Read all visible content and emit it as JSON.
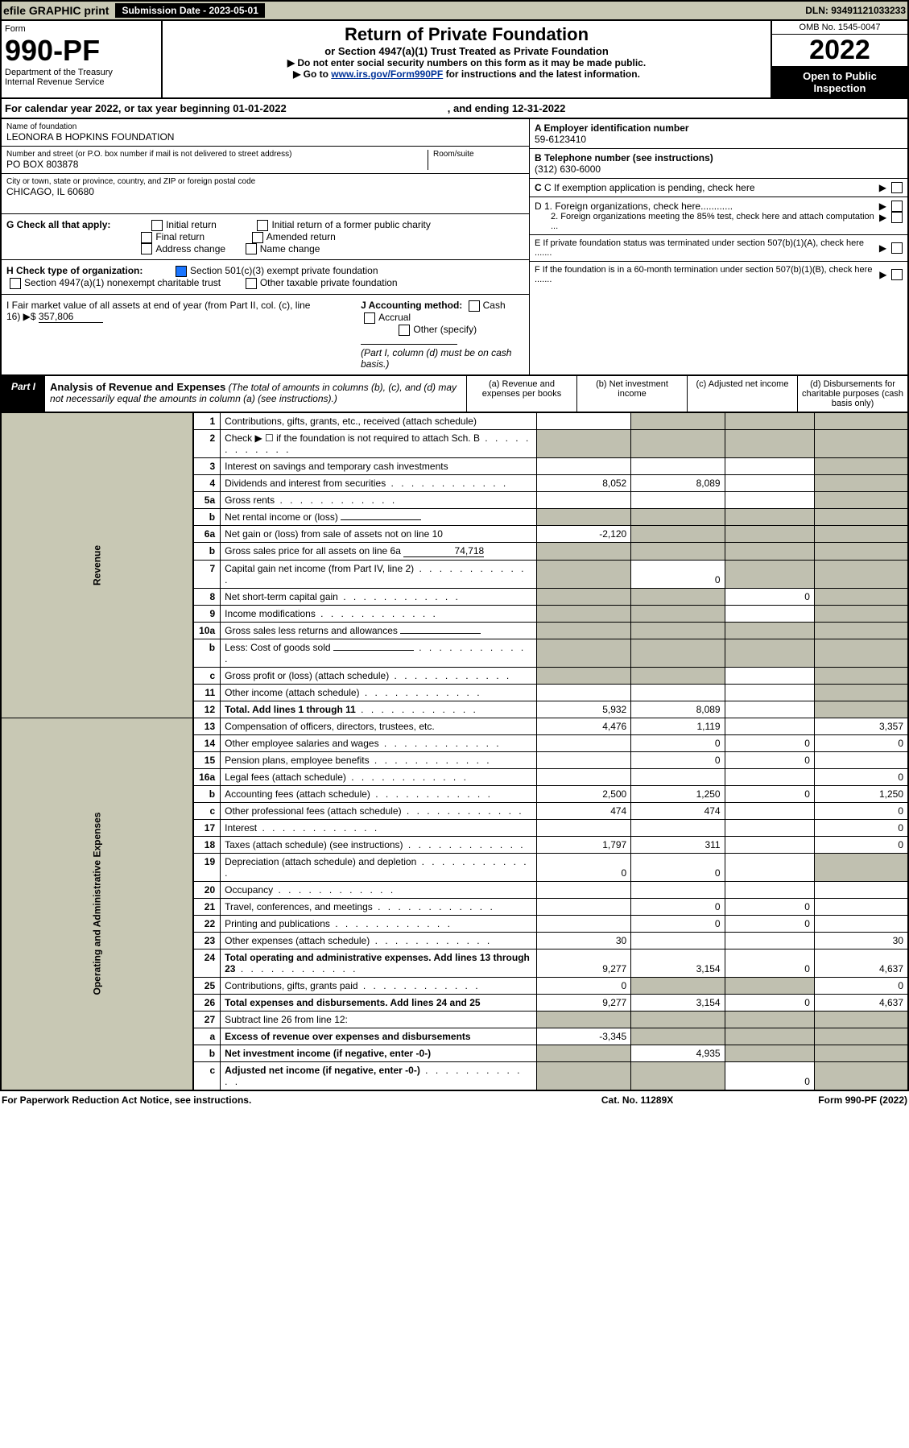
{
  "top_bar": {
    "efile": "efile GRAPHIC print",
    "submission": "Submission Date - 2023-05-01",
    "dln": "DLN: 93491121033233"
  },
  "header": {
    "form": "Form",
    "number": "990-PF",
    "dept": "Department of the Treasury",
    "irs": "Internal Revenue Service",
    "title": "Return of Private Foundation",
    "subtitle": "or Section 4947(a)(1) Trust Treated as Private Foundation",
    "inst1": "▶ Do not enter social security numbers on this form as it may be made public.",
    "inst2_pre": "▶ Go to ",
    "inst2_link": "www.irs.gov/Form990PF",
    "inst2_post": " for instructions and the latest information.",
    "omb": "OMB No. 1545-0047",
    "year": "2022",
    "open": "Open to Public Inspection"
  },
  "calendar": {
    "text": "For calendar year 2022, or tax year beginning 01-01-2022",
    "ending": ", and ending 12-31-2022"
  },
  "foundation": {
    "name_lbl": "Name of foundation",
    "name": "LEONORA B HOPKINS FOUNDATION",
    "addr_lbl": "Number and street (or P.O. box number if mail is not delivered to street address)",
    "addr": "PO BOX 803878",
    "room_lbl": "Room/suite",
    "city_lbl": "City or town, state or province, country, and ZIP or foreign postal code",
    "city": "CHICAGO, IL  60680"
  },
  "right_info": {
    "a_lbl": "A Employer identification number",
    "a_val": "59-6123410",
    "b_lbl": "B Telephone number (see instructions)",
    "b_val": "(312) 630-6000",
    "c_lbl": "C If exemption application is pending, check here",
    "d1": "D 1. Foreign organizations, check here............",
    "d2": "2. Foreign organizations meeting the 85% test, check here and attach computation ...",
    "e_lbl": "E  If private foundation status was terminated under section 507(b)(1)(A), check here .......",
    "f_lbl": "F  If the foundation is in a 60-month termination under section 507(b)(1)(B), check here ......."
  },
  "checks": {
    "g_lbl": "G Check all that apply:",
    "initial": "Initial return",
    "final": "Final return",
    "addr_change": "Address change",
    "initial_former": "Initial return of a former public charity",
    "amended": "Amended return",
    "name_change": "Name change",
    "h_lbl": "H Check type of organization:",
    "h1": "Section 501(c)(3) exempt private foundation",
    "h2": "Section 4947(a)(1) nonexempt charitable trust",
    "h3": "Other taxable private foundation",
    "i_lbl": "I Fair market value of all assets at end of year (from Part II, col. (c), line 16) ▶$ ",
    "i_val": "357,806",
    "j_lbl": "J Accounting method:",
    "j_cash": "Cash",
    "j_accrual": "Accrual",
    "j_other": "Other (specify)",
    "j_note": "(Part I, column (d) must be on cash basis.)"
  },
  "part1": {
    "label": "Part I",
    "title": "Analysis of Revenue and Expenses",
    "note": "(The total of amounts in columns (b), (c), and (d) may not necessarily equal the amounts in column (a) (see instructions).)",
    "col_a": "(a)  Revenue and expenses per books",
    "col_b": "(b)  Net investment income",
    "col_c": "(c)  Adjusted net income",
    "col_d": "(d)  Disbursements for charitable purposes (cash basis only)"
  },
  "sections": {
    "revenue": "Revenue",
    "expenses": "Operating and Administrative Expenses"
  },
  "rows": [
    {
      "n": "1",
      "d": "Contributions, gifts, grants, etc., received (attach schedule)",
      "a": "",
      "b": "g",
      "c": "g",
      "dd": "g"
    },
    {
      "n": "2",
      "d": "Check ▶ ☐ if the foundation is not required to attach Sch. B",
      "a": "g",
      "b": "g",
      "c": "g",
      "dd": "g",
      "dots": true
    },
    {
      "n": "3",
      "d": "Interest on savings and temporary cash investments",
      "a": "",
      "b": "",
      "c": "",
      "dd": "g"
    },
    {
      "n": "4",
      "d": "Dividends and interest from securities",
      "a": "8,052",
      "b": "8,089",
      "c": "",
      "dd": "g",
      "dots": true
    },
    {
      "n": "5a",
      "d": "Gross rents",
      "a": "",
      "b": "",
      "c": "",
      "dd": "g",
      "dots": true
    },
    {
      "n": "b",
      "d": "Net rental income or (loss)",
      "a": "g",
      "b": "g",
      "c": "g",
      "dd": "g",
      "inline": true
    },
    {
      "n": "6a",
      "d": "Net gain or (loss) from sale of assets not on line 10",
      "a": "-2,120",
      "b": "g",
      "c": "g",
      "dd": "g"
    },
    {
      "n": "b",
      "d": "Gross sales price for all assets on line 6a",
      "a": "g",
      "b": "g",
      "c": "g",
      "dd": "g",
      "val": "74,718",
      "inline": true
    },
    {
      "n": "7",
      "d": "Capital gain net income (from Part IV, line 2)",
      "a": "g",
      "b": "0",
      "c": "g",
      "dd": "g",
      "dots": true
    },
    {
      "n": "8",
      "d": "Net short-term capital gain",
      "a": "g",
      "b": "g",
      "c": "0",
      "dd": "g",
      "dots": true
    },
    {
      "n": "9",
      "d": "Income modifications",
      "a": "g",
      "b": "g",
      "c": "",
      "dd": "g",
      "dots": true
    },
    {
      "n": "10a",
      "d": "Gross sales less returns and allowances",
      "a": "g",
      "b": "g",
      "c": "g",
      "dd": "g",
      "inline": true
    },
    {
      "n": "b",
      "d": "Less: Cost of goods sold",
      "a": "g",
      "b": "g",
      "c": "g",
      "dd": "g",
      "inline": true,
      "dots": true
    },
    {
      "n": "c",
      "d": "Gross profit or (loss) (attach schedule)",
      "a": "g",
      "b": "g",
      "c": "",
      "dd": "g",
      "dots": true
    },
    {
      "n": "11",
      "d": "Other income (attach schedule)",
      "a": "",
      "b": "",
      "c": "",
      "dd": "g",
      "dots": true
    },
    {
      "n": "12",
      "d": "Total. Add lines 1 through 11",
      "a": "5,932",
      "b": "8,089",
      "c": "",
      "dd": "g",
      "bold": true,
      "dots": true
    }
  ],
  "exp_rows": [
    {
      "n": "13",
      "d": "Compensation of officers, directors, trustees, etc.",
      "a": "4,476",
      "b": "1,119",
      "c": "",
      "dd": "3,357"
    },
    {
      "n": "14",
      "d": "Other employee salaries and wages",
      "a": "",
      "b": "0",
      "c": "0",
      "dd": "0",
      "dots": true
    },
    {
      "n": "15",
      "d": "Pension plans, employee benefits",
      "a": "",
      "b": "0",
      "c": "0",
      "dd": "",
      "dots": true
    },
    {
      "n": "16a",
      "d": "Legal fees (attach schedule)",
      "a": "",
      "b": "",
      "c": "",
      "dd": "0",
      "dots": true
    },
    {
      "n": "b",
      "d": "Accounting fees (attach schedule)",
      "a": "2,500",
      "b": "1,250",
      "c": "0",
      "dd": "1,250",
      "dots": true
    },
    {
      "n": "c",
      "d": "Other professional fees (attach schedule)",
      "a": "474",
      "b": "474",
      "c": "",
      "dd": "0",
      "dots": true
    },
    {
      "n": "17",
      "d": "Interest",
      "a": "",
      "b": "",
      "c": "",
      "dd": "0",
      "dots": true
    },
    {
      "n": "18",
      "d": "Taxes (attach schedule) (see instructions)",
      "a": "1,797",
      "b": "311",
      "c": "",
      "dd": "0",
      "dots": true
    },
    {
      "n": "19",
      "d": "Depreciation (attach schedule) and depletion",
      "a": "0",
      "b": "0",
      "c": "",
      "dd": "g",
      "dots": true
    },
    {
      "n": "20",
      "d": "Occupancy",
      "a": "",
      "b": "",
      "c": "",
      "dd": "",
      "dots": true
    },
    {
      "n": "21",
      "d": "Travel, conferences, and meetings",
      "a": "",
      "b": "0",
      "c": "0",
      "dd": "",
      "dots": true
    },
    {
      "n": "22",
      "d": "Printing and publications",
      "a": "",
      "b": "0",
      "c": "0",
      "dd": "",
      "dots": true
    },
    {
      "n": "23",
      "d": "Other expenses (attach schedule)",
      "a": "30",
      "b": "",
      "c": "",
      "dd": "30",
      "dots": true
    },
    {
      "n": "24",
      "d": "Total operating and administrative expenses. Add lines 13 through 23",
      "a": "9,277",
      "b": "3,154",
      "c": "0",
      "dd": "4,637",
      "bold": true,
      "dots": true
    },
    {
      "n": "25",
      "d": "Contributions, gifts, grants paid",
      "a": "0",
      "b": "g",
      "c": "g",
      "dd": "0",
      "dots": true
    },
    {
      "n": "26",
      "d": "Total expenses and disbursements. Add lines 24 and 25",
      "a": "9,277",
      "b": "3,154",
      "c": "0",
      "dd": "4,637",
      "bold": true
    },
    {
      "n": "27",
      "d": "Subtract line 26 from line 12:",
      "a": "g",
      "b": "g",
      "c": "g",
      "dd": "g"
    },
    {
      "n": "a",
      "d": "Excess of revenue over expenses and disbursements",
      "a": "-3,345",
      "b": "g",
      "c": "g",
      "dd": "g",
      "bold": true
    },
    {
      "n": "b",
      "d": "Net investment income (if negative, enter -0-)",
      "a": "g",
      "b": "4,935",
      "c": "g",
      "dd": "g",
      "bold": true
    },
    {
      "n": "c",
      "d": "Adjusted net income (if negative, enter -0-)",
      "a": "g",
      "b": "g",
      "c": "0",
      "dd": "g",
      "bold": true,
      "dots": true
    }
  ],
  "footer": {
    "left": "For Paperwork Reduction Act Notice, see instructions.",
    "mid": "Cat. No. 11289X",
    "right": "Form 990-PF (2022)"
  }
}
